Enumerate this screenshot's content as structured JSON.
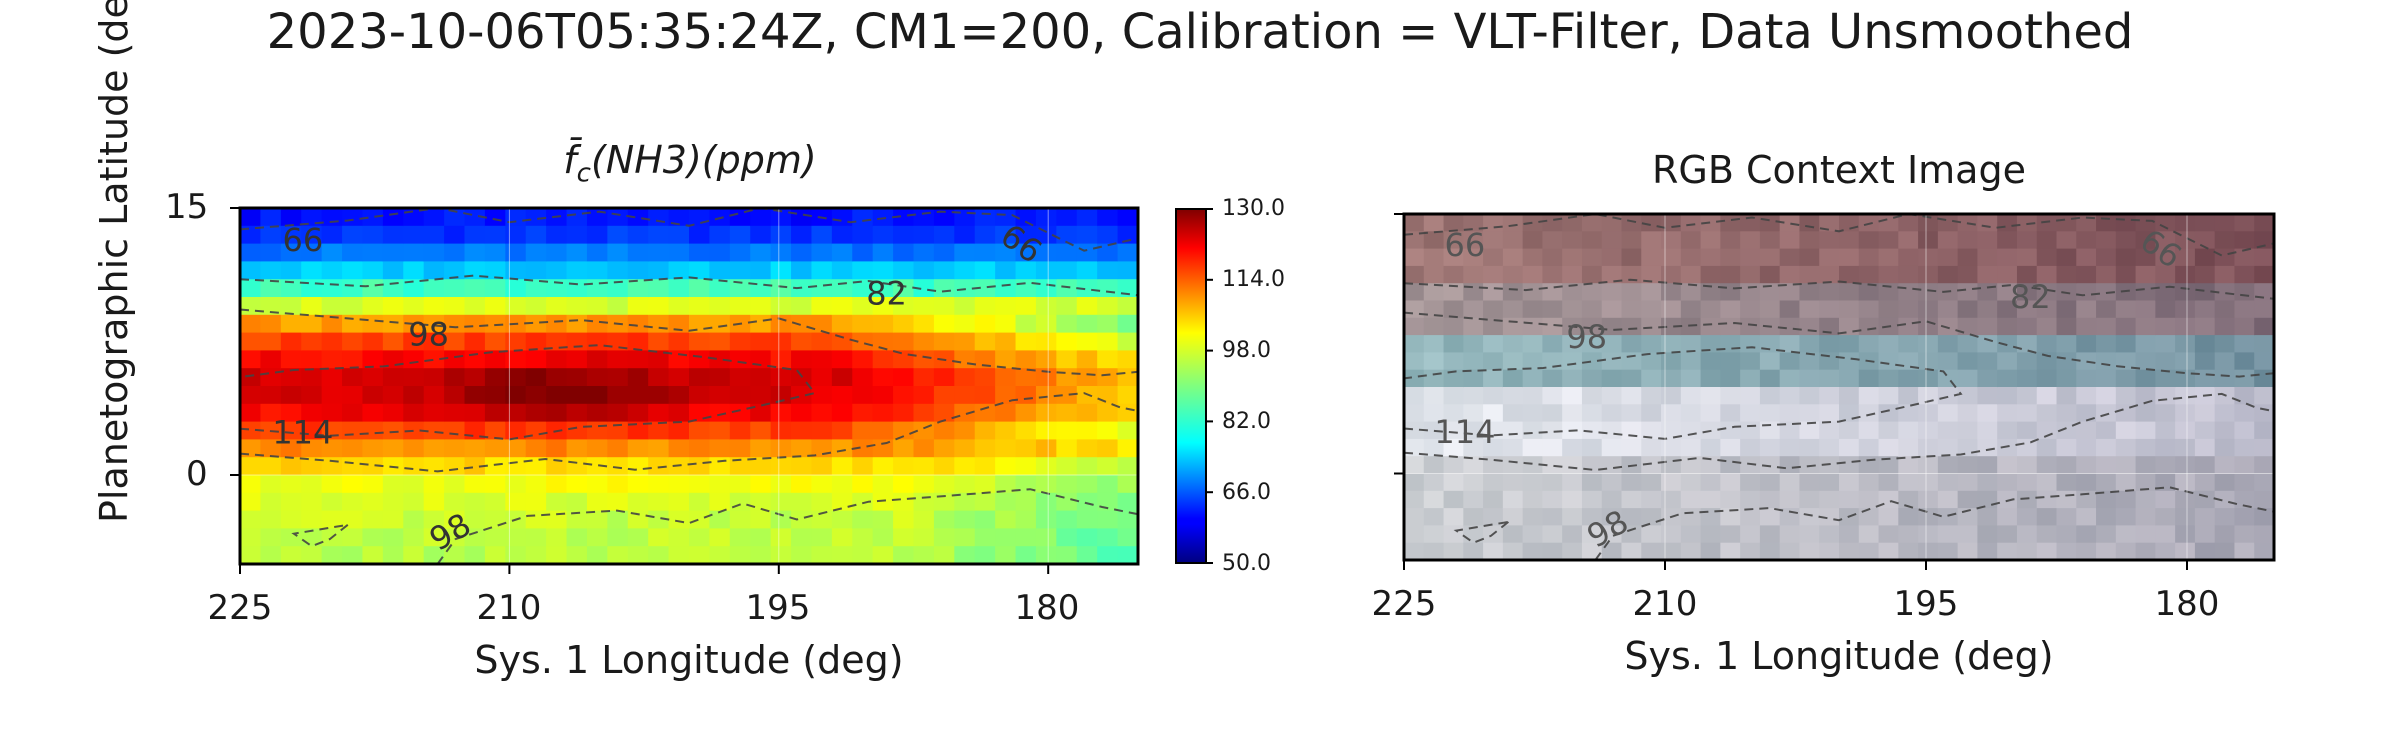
{
  "figure": {
    "title": "2023-10-06T05:35:24Z, CM1=200, Calibration = VLT-Filter, Data Unsmoothed",
    "ylabel": "Planetographic Latitude (deg)"
  },
  "colors": {
    "contour": "#444444",
    "axis": "#000000",
    "grid": "#ffffff"
  },
  "chart_data": [
    {
      "type": "heatmap",
      "title": "f̄c(NH3)(ppm)",
      "xlabel": "Sys. 1 Longitude (deg)",
      "ylabel": "Planetographic Latitude (deg)",
      "xlim": [
        225,
        175
      ],
      "ylim": [
        -5,
        15
      ],
      "xticks": [
        "225",
        "210",
        "195",
        "180"
      ],
      "yticks": [
        "15",
        "0"
      ],
      "colorbar": {
        "colormap": "jet",
        "range": [
          50,
          130
        ],
        "ticks": [
          "130.0",
          "114.0",
          "98.0",
          "82.0",
          "66.0",
          "50.0"
        ]
      },
      "grid": true,
      "contour_levels": [
        "66",
        "82",
        "98",
        "114"
      ],
      "lat_profile": [
        {
          "lat": 15,
          "ppm": 60
        },
        {
          "lat": 13.5,
          "ppm": 64
        },
        {
          "lat": 12,
          "ppm": 72
        },
        {
          "lat": 11,
          "ppm": 80
        },
        {
          "lat": 10,
          "ppm": 90
        },
        {
          "lat": 9,
          "ppm": 104
        },
        {
          "lat": 8,
          "ppm": 112
        },
        {
          "lat": 7,
          "ppm": 118
        },
        {
          "lat": 5.5,
          "ppm": 123
        },
        {
          "lat": 4,
          "ppm": 122
        },
        {
          "lat": 3,
          "ppm": 118
        },
        {
          "lat": 2,
          "ppm": 112
        },
        {
          "lat": 1,
          "ppm": 106
        },
        {
          "lat": 0,
          "ppm": 100
        },
        {
          "lat": -2,
          "ppm": 96
        },
        {
          "lat": -5,
          "ppm": 94
        }
      ]
    },
    {
      "type": "image",
      "title": "RGB Context Image",
      "xlabel": "Sys. 1 Longitude (deg)",
      "xlim": [
        225,
        175
      ],
      "ylim": [
        -5,
        15
      ],
      "xticks": [
        "225",
        "210",
        "195",
        "180"
      ],
      "contour_levels": [
        "66",
        "82",
        "98",
        "114"
      ]
    }
  ]
}
